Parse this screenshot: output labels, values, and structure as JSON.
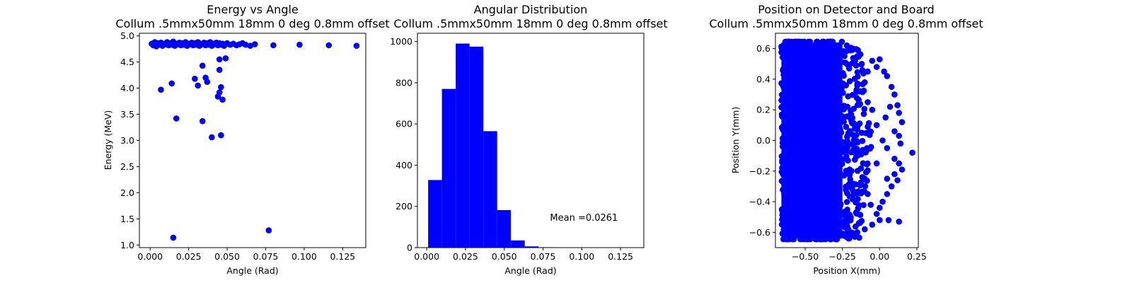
{
  "chart_data": [
    {
      "type": "scatter",
      "title": "Energy vs Angle",
      "subtitle": "Collum .5mmx50mm 18mm 0 deg 0.8mm offset",
      "xlabel": "Angle (Rad)",
      "ylabel": "Energy (MeV)",
      "xlim": [
        -0.007,
        0.14
      ],
      "ylim": [
        0.95,
        5.05
      ],
      "xticks": [
        0.0,
        0.025,
        0.05,
        0.075,
        0.1,
        0.125
      ],
      "xtick_labels": [
        "0.000",
        "0.025",
        "0.050",
        "0.075",
        "0.100",
        "0.125"
      ],
      "yticks": [
        1.0,
        1.5,
        2.0,
        2.5,
        3.0,
        3.5,
        4.0,
        4.5,
        5.0
      ],
      "ytick_labels": [
        "1.0",
        "1.5",
        "2.0",
        "2.5",
        "3.0",
        "3.5",
        "4.0",
        "4.5",
        "5.0"
      ],
      "color": "#0000ff",
      "points": [
        [
          0.001,
          4.85
        ],
        [
          0.002,
          4.82
        ],
        [
          0.003,
          4.88
        ],
        [
          0.004,
          4.8
        ],
        [
          0.005,
          4.86
        ],
        [
          0.006,
          4.83
        ],
        [
          0.007,
          4.87
        ],
        [
          0.008,
          4.81
        ],
        [
          0.009,
          4.85
        ],
        [
          0.01,
          4.84
        ],
        [
          0.011,
          4.88
        ],
        [
          0.012,
          4.82
        ],
        [
          0.013,
          4.86
        ],
        [
          0.014,
          4.83
        ],
        [
          0.015,
          4.89
        ],
        [
          0.016,
          4.81
        ],
        [
          0.017,
          4.85
        ],
        [
          0.018,
          4.84
        ],
        [
          0.019,
          4.87
        ],
        [
          0.02,
          4.82
        ],
        [
          0.021,
          4.86
        ],
        [
          0.022,
          4.83
        ],
        [
          0.023,
          4.88
        ],
        [
          0.024,
          4.81
        ],
        [
          0.025,
          4.85
        ],
        [
          0.026,
          4.84
        ],
        [
          0.027,
          4.87
        ],
        [
          0.028,
          4.82
        ],
        [
          0.029,
          4.86
        ],
        [
          0.03,
          4.83
        ],
        [
          0.031,
          4.88
        ],
        [
          0.032,
          4.81
        ],
        [
          0.033,
          4.85
        ],
        [
          0.034,
          4.84
        ],
        [
          0.035,
          4.87
        ],
        [
          0.036,
          4.82
        ],
        [
          0.037,
          4.86
        ],
        [
          0.038,
          4.83
        ],
        [
          0.039,
          4.88
        ],
        [
          0.04,
          4.81
        ],
        [
          0.041,
          4.85
        ],
        [
          0.042,
          4.84
        ],
        [
          0.043,
          4.87
        ],
        [
          0.044,
          4.82
        ],
        [
          0.045,
          4.86
        ],
        [
          0.046,
          4.83
        ],
        [
          0.047,
          4.85
        ],
        [
          0.048,
          4.81
        ],
        [
          0.049,
          4.84
        ],
        [
          0.05,
          4.86
        ],
        [
          0.052,
          4.83
        ],
        [
          0.054,
          4.85
        ],
        [
          0.056,
          4.82
        ],
        [
          0.058,
          4.84
        ],
        [
          0.06,
          4.86
        ],
        [
          0.062,
          4.83
        ],
        [
          0.065,
          4.81
        ],
        [
          0.068,
          4.84
        ],
        [
          0.08,
          4.82
        ],
        [
          0.097,
          4.83
        ],
        [
          0.116,
          4.82
        ],
        [
          0.134,
          4.81
        ],
        [
          0.007,
          3.97
        ],
        [
          0.014,
          4.09
        ],
        [
          0.017,
          3.42
        ],
        [
          0.015,
          1.14
        ],
        [
          0.029,
          4.18
        ],
        [
          0.031,
          4.05
        ],
        [
          0.034,
          4.43
        ],
        [
          0.036,
          4.2
        ],
        [
          0.037,
          4.12
        ],
        [
          0.034,
          3.37
        ],
        [
          0.04,
          3.06
        ],
        [
          0.046,
          3.1
        ],
        [
          0.044,
          3.84
        ],
        [
          0.045,
          3.92
        ],
        [
          0.046,
          4.02
        ],
        [
          0.047,
          3.78
        ],
        [
          0.045,
          4.35
        ],
        [
          0.045,
          4.55
        ],
        [
          0.049,
          4.57
        ],
        [
          0.077,
          1.28
        ]
      ]
    },
    {
      "type": "bar",
      "title": "Angular Distribution",
      "subtitle": "Collum .5mmx50mm 18mm 0 deg 0.8mm offset",
      "xlabel": "Angle (Rad)",
      "ylabel": "",
      "xlim": [
        -0.006,
        0.14
      ],
      "ylim": [
        0,
        1040
      ],
      "xticks": [
        0.0,
        0.025,
        0.05,
        0.075,
        0.1,
        0.125
      ],
      "xtick_labels": [
        "0.000",
        "0.025",
        "0.050",
        "0.075",
        "0.100",
        "0.125"
      ],
      "yticks": [
        0,
        200,
        400,
        600,
        800,
        1000
      ],
      "ytick_labels": [
        "0",
        "200",
        "400",
        "600",
        "800",
        "1000"
      ],
      "color": "#0000ff",
      "bin_edges": [
        0.0009,
        0.0098,
        0.0187,
        0.0276,
        0.0365,
        0.0454,
        0.0543,
        0.0632,
        0.0721,
        0.081
      ],
      "values": [
        328,
        770,
        990,
        975,
        565,
        182,
        35,
        6,
        2
      ],
      "annotation": "Mean =0.0261",
      "annotation_at": [
        0.0795,
        130
      ]
    },
    {
      "type": "scatter",
      "title": "Position on Detector and Board",
      "subtitle": "Collum .5mmx50mm 18mm 0 deg 0.8mm offset",
      "xlabel": "Position X(mm)",
      "ylabel": "Position Y(mm)",
      "xlim": [
        -0.7,
        0.26
      ],
      "ylim": [
        -0.7,
        0.7
      ],
      "xticks": [
        -0.5,
        -0.25,
        0.0,
        0.25
      ],
      "xtick_labels": [
        "−0.50",
        "−0.25",
        "0.00",
        "0.25"
      ],
      "yticks": [
        -0.6,
        -0.4,
        -0.2,
        0.0,
        0.2,
        0.4,
        0.6
      ],
      "ytick_labels": [
        "−0.6",
        "−0.4",
        "−0.2",
        "0.0",
        "0.2",
        "0.4",
        "0.6"
      ],
      "color": "#0000ff",
      "dense_region": {
        "x_min": -0.66,
        "x_max": -0.25,
        "y_min": -0.64,
        "y_max": 0.64
      },
      "points": [
        [
          -0.22,
          0.62
        ],
        [
          -0.18,
          0.6
        ],
        [
          -0.15,
          0.55
        ],
        [
          -0.12,
          0.5
        ],
        [
          -0.08,
          0.45
        ],
        [
          -0.05,
          0.52
        ],
        [
          -0.02,
          0.48
        ],
        [
          0.0,
          0.53
        ],
        [
          0.03,
          0.45
        ],
        [
          0.05,
          0.42
        ],
        [
          0.08,
          0.35
        ],
        [
          0.1,
          0.3
        ],
        [
          0.12,
          0.23
        ],
        [
          0.13,
          0.18
        ],
        [
          0.15,
          0.12
        ],
        [
          0.1,
          0.06
        ],
        [
          0.13,
          0.03
        ],
        [
          0.14,
          -0.02
        ],
        [
          0.22,
          -0.08
        ],
        [
          0.1,
          -0.12
        ],
        [
          0.13,
          -0.15
        ],
        [
          0.15,
          -0.19
        ],
        [
          0.1,
          -0.22
        ],
        [
          0.12,
          -0.26
        ],
        [
          0.08,
          -0.3
        ],
        [
          0.05,
          -0.35
        ],
        [
          0.02,
          -0.4
        ],
        [
          0.0,
          -0.44
        ],
        [
          -0.02,
          -0.48
        ],
        [
          0.0,
          -0.52
        ],
        [
          0.06,
          -0.52
        ],
        [
          0.13,
          -0.53
        ],
        [
          -0.05,
          -0.55
        ],
        [
          -0.1,
          -0.58
        ],
        [
          -0.15,
          -0.6
        ],
        [
          -0.2,
          -0.62
        ],
        [
          -0.08,
          0.25
        ],
        [
          -0.05,
          0.2
        ],
        [
          -0.02,
          0.1
        ],
        [
          0.02,
          0.0
        ],
        [
          0.05,
          -0.05
        ],
        [
          -0.02,
          -0.15
        ],
        [
          0.04,
          0.15
        ],
        [
          0.07,
          0.22
        ],
        [
          0.05,
          -0.25
        ],
        [
          -0.08,
          -0.35
        ],
        [
          -0.12,
          0.05
        ],
        [
          -0.15,
          -0.1
        ],
        [
          -0.1,
          0.38
        ],
        [
          -0.06,
          -0.42
        ]
      ]
    }
  ]
}
